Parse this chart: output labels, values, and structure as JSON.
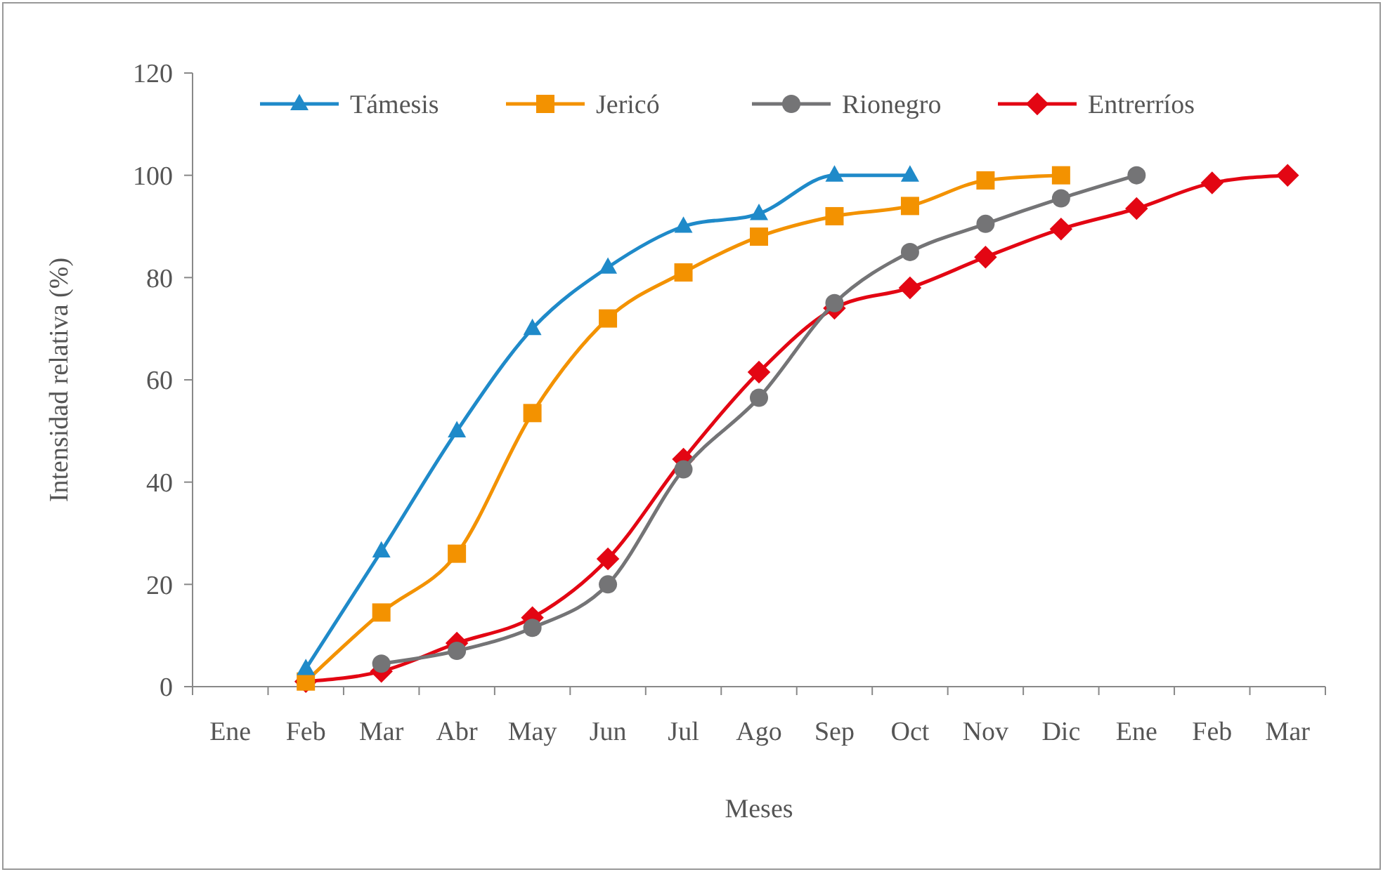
{
  "chart_data": {
    "type": "line",
    "xlabel": "Meses",
    "ylabel": "Intensidad relativa (%)",
    "categories": [
      "Ene",
      "Feb",
      "Mar",
      "Abr",
      "May",
      "Jun",
      "Jul",
      "Ago",
      "Sep",
      "Oct",
      "Nov",
      "Dic",
      "Ene",
      "Feb",
      "Mar"
    ],
    "ylim": [
      0,
      120
    ],
    "yticks": [
      0,
      20,
      40,
      60,
      80,
      100,
      120
    ],
    "grid": false,
    "legend": "top",
    "series": [
      {
        "name": "Támesis",
        "color": "#1f8ac9",
        "marker": "triangle",
        "values": [
          null,
          3.5,
          26.5,
          50,
          70,
          82,
          90,
          92.5,
          100,
          100,
          null,
          null,
          null,
          null,
          null
        ]
      },
      {
        "name": "Jericó",
        "color": "#f39200",
        "marker": "square",
        "values": [
          null,
          1,
          14.5,
          26,
          53.5,
          72,
          81,
          88,
          92,
          94,
          99,
          100,
          null,
          null,
          null
        ]
      },
      {
        "name": "Rionegro",
        "color": "#747476",
        "marker": "circle",
        "values": [
          null,
          null,
          4.5,
          7,
          11.5,
          20,
          42.5,
          56.5,
          75,
          85,
          90.5,
          95.5,
          100,
          null,
          null
        ]
      },
      {
        "name": "Entrerríos",
        "color": "#e30613",
        "marker": "diamond",
        "values": [
          null,
          1,
          3,
          8.5,
          13.5,
          25,
          44.5,
          61.5,
          74,
          78,
          84,
          89.5,
          93.5,
          98.5,
          100
        ]
      }
    ]
  }
}
